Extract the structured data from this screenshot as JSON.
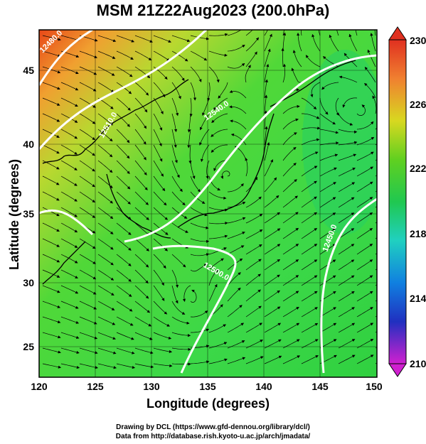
{
  "title": "MSM 21Z22Aug2023 (200.0hPa)",
  "x_axis": {
    "label": "Longitude (degrees)",
    "ticks": [
      "120",
      "125",
      "130",
      "135",
      "140",
      "145",
      "150"
    ]
  },
  "y_axis": {
    "label": "Latitude  (degrees)",
    "ticks": [
      "25",
      "30",
      "35",
      "40",
      "45"
    ]
  },
  "colorbar": {
    "ticks": [
      "230",
      "226",
      "222",
      "218",
      "214",
      "210"
    ]
  },
  "contour_labels": [
    "12540.0",
    "12510.0",
    "12500.0",
    "12450.0",
    "12480.0"
  ],
  "credits": {
    "line1": "Drawing by DCL (https://www.gfd-dennou.org/library/dcl/)",
    "line2": "Data from http://database.rish.kyoto-u.ac.jp/arch/jmadata/"
  }
}
